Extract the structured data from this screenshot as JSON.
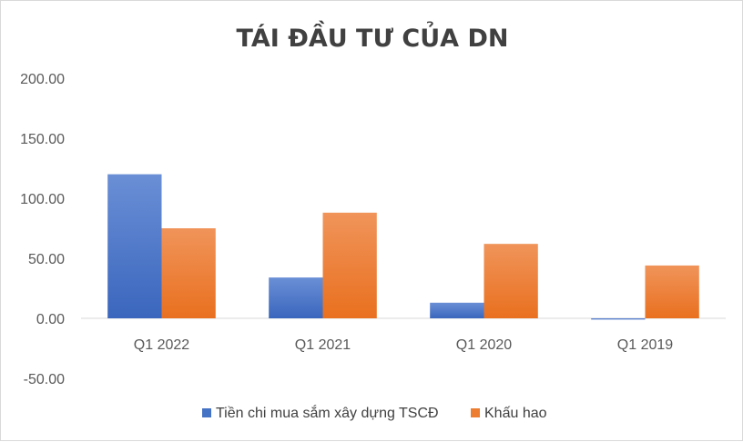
{
  "chart_data": {
    "type": "bar",
    "title": "TÁI ĐẦU TƯ CỦA DN",
    "xlabel": "",
    "ylabel": "",
    "categories": [
      "Q1 2022",
      "Q1 2021",
      "Q1 2020",
      "Q1 2019"
    ],
    "series": [
      {
        "name": "Tiền chi mua sắm xây dựng TSCĐ",
        "values": [
          120,
          34,
          13,
          -1
        ],
        "color": "#4472c4"
      },
      {
        "name": "Khấu hao",
        "values": [
          75,
          88,
          62,
          44
        ],
        "color": "#ed7d31"
      }
    ],
    "ylim": [
      -50,
      200
    ],
    "yticks": [
      "200.00",
      "150.00",
      "100.00",
      "50.00",
      "0.00",
      "-50.00"
    ],
    "grid": false,
    "legend_position": "bottom"
  }
}
